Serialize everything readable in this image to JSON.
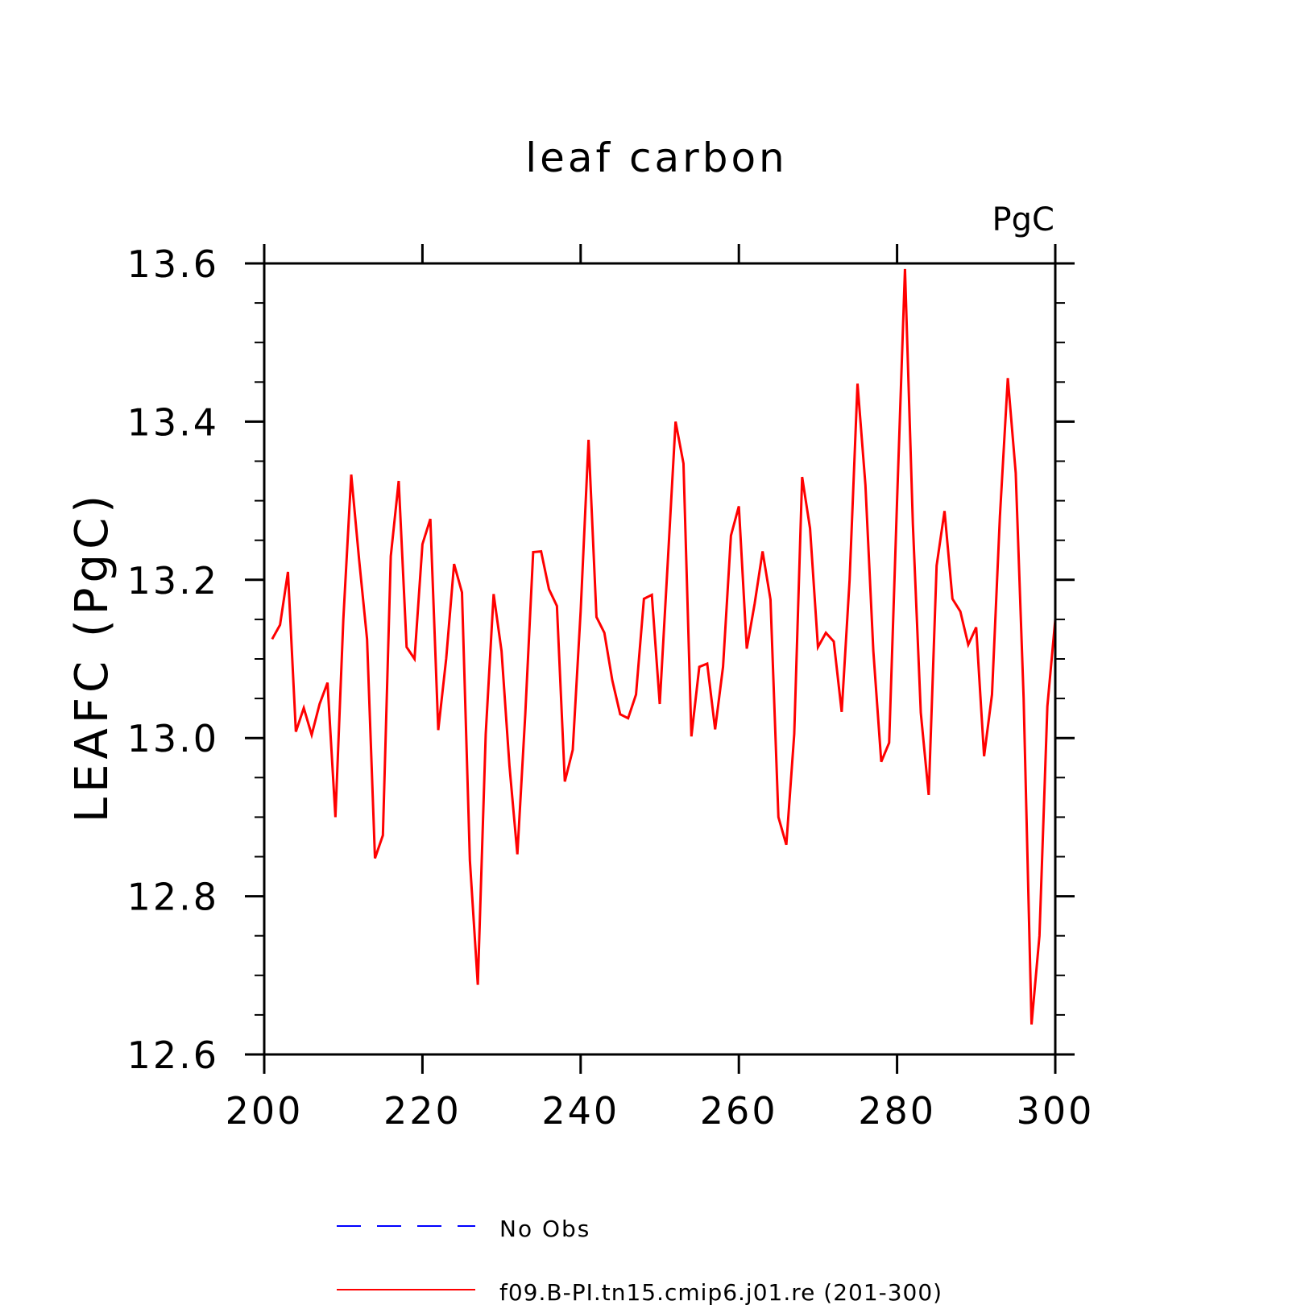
{
  "chart_data": {
    "type": "line",
    "title": "leaf carbon",
    "units": "PgC",
    "xlabel": "",
    "ylabel": "LEAFC (PgC)",
    "xlim": [
      200,
      300
    ],
    "ylim": [
      12.6,
      13.6
    ],
    "x_ticks": [
      200,
      220,
      240,
      260,
      280,
      300
    ],
    "y_ticks": [
      12.6,
      12.8,
      13.0,
      13.2,
      13.4,
      13.6
    ],
    "x_tick_labels": [
      "200",
      "220",
      "240",
      "260",
      "280",
      "300"
    ],
    "y_tick_labels": [
      "12.6",
      "12.8",
      "13.0",
      "13.2",
      "13.4",
      "13.6"
    ],
    "grid": false,
    "legend_position": "bottom",
    "legend": [
      {
        "label": "No Obs",
        "color": "#0000ff",
        "style": "dashed"
      },
      {
        "label": "f09.B-PI.tn15.cmip6.j01.re (201-300)",
        "color": "#ff0000",
        "style": "solid"
      }
    ],
    "series": [
      {
        "name": "f09.B-PI.tn15.cmip6.j01.re (201-300)",
        "color": "#ff0000",
        "x": [
          201,
          202,
          203,
          204,
          205,
          206,
          207,
          208,
          209,
          210,
          211,
          212,
          213,
          214,
          215,
          216,
          217,
          218,
          219,
          220,
          221,
          222,
          223,
          224,
          225,
          226,
          227,
          228,
          229,
          230,
          231,
          232,
          233,
          234,
          235,
          236,
          237,
          238,
          239,
          240,
          241,
          242,
          243,
          244,
          245,
          246,
          247,
          248,
          249,
          250,
          251,
          252,
          253,
          254,
          255,
          256,
          257,
          258,
          259,
          260,
          261,
          262,
          263,
          264,
          265,
          266,
          267,
          268,
          269,
          270,
          271,
          272,
          273,
          274,
          275,
          276,
          277,
          278,
          279,
          280,
          281,
          282,
          283,
          284,
          285,
          286,
          287,
          288,
          289,
          290,
          291,
          292,
          293,
          294,
          295,
          296,
          297,
          298,
          299,
          300
        ],
        "values": [
          13.125,
          13.143,
          13.21,
          13.008,
          13.038,
          13.004,
          13.043,
          13.07,
          12.9,
          13.15,
          13.333,
          13.225,
          13.125,
          12.848,
          12.877,
          13.23,
          13.325,
          13.115,
          13.1,
          13.245,
          13.277,
          13.01,
          13.1,
          13.22,
          13.184,
          12.845,
          12.688,
          13.005,
          13.182,
          13.11,
          12.965,
          12.853,
          13.03,
          13.235,
          13.236,
          13.188,
          13.167,
          12.945,
          12.985,
          13.16,
          13.377,
          13.153,
          13.133,
          13.073,
          13.03,
          13.025,
          13.055,
          13.176,
          13.181,
          13.043,
          13.22,
          13.4,
          13.347,
          13.002,
          13.09,
          13.094,
          13.011,
          13.09,
          13.256,
          13.293,
          13.113,
          13.17,
          13.236,
          13.175,
          12.9,
          12.865,
          13.005,
          13.33,
          13.265,
          13.115,
          13.133,
          13.122,
          13.033,
          13.2,
          13.448,
          13.32,
          13.11,
          12.97,
          12.994,
          13.3,
          13.593,
          13.27,
          13.032,
          12.928,
          13.218,
          13.287,
          13.176,
          13.16,
          13.118,
          13.14,
          12.977,
          13.055,
          13.28,
          13.455,
          13.335,
          13.05,
          12.638,
          12.75,
          13.04,
          13.15
        ]
      }
    ]
  }
}
